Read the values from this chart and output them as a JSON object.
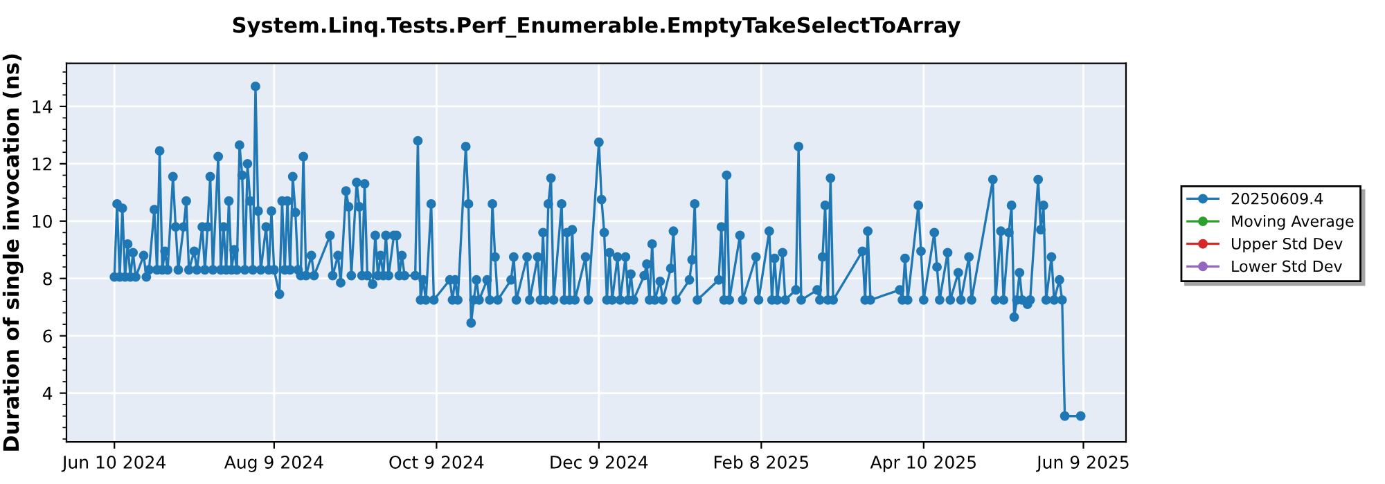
{
  "chart_data": {
    "type": "line",
    "title": "System.Linq.Tests.Perf_Enumerable.EmptyTakeSelectToArray",
    "ylabel": "Duration of single invocation (ns)",
    "x": [
      "2024-06-10",
      "2024-06-11",
      "2024-06-12",
      "2024-06-13",
      "2024-06-14",
      "2024-06-15",
      "2024-06-16",
      "2024-06-17",
      "2024-06-18",
      "2024-06-21",
      "2024-06-22",
      "2024-06-23",
      "2024-06-25",
      "2024-06-26",
      "2024-06-27",
      "2024-06-28",
      "2024-06-29",
      "2024-06-30",
      "2024-07-02",
      "2024-07-03",
      "2024-07-04",
      "2024-07-06",
      "2024-07-07",
      "2024-07-08",
      "2024-07-10",
      "2024-07-11",
      "2024-07-13",
      "2024-07-14",
      "2024-07-15",
      "2024-07-16",
      "2024-07-17",
      "2024-07-19",
      "2024-07-20",
      "2024-07-21",
      "2024-07-22",
      "2024-07-23",
      "2024-07-24",
      "2024-07-25",
      "2024-07-26",
      "2024-07-27",
      "2024-07-28",
      "2024-07-29",
      "2024-07-30",
      "2024-07-31",
      "2024-08-01",
      "2024-08-02",
      "2024-08-03",
      "2024-08-04",
      "2024-08-06",
      "2024-08-07",
      "2024-08-08",
      "2024-08-09",
      "2024-08-11",
      "2024-08-12",
      "2024-08-13",
      "2024-08-14",
      "2024-08-15",
      "2024-08-16",
      "2024-08-17",
      "2024-08-18",
      "2024-08-19",
      "2024-08-20",
      "2024-08-21",
      "2024-08-23",
      "2024-08-24",
      "2024-08-30",
      "2024-08-31",
      "2024-09-02",
      "2024-09-03",
      "2024-09-05",
      "2024-09-06",
      "2024-09-07",
      "2024-09-09",
      "2024-09-10",
      "2024-09-11",
      "2024-09-12",
      "2024-09-13",
      "2024-09-15",
      "2024-09-16",
      "2024-09-17",
      "2024-09-18",
      "2024-09-19",
      "2024-09-20",
      "2024-09-21",
      "2024-09-23",
      "2024-09-24",
      "2024-09-25",
      "2024-09-26",
      "2024-09-27",
      "2024-10-01",
      "2024-10-02",
      "2024-10-03",
      "2024-10-04",
      "2024-10-05",
      "2024-10-07",
      "2024-10-08",
      "2024-10-14",
      "2024-10-15",
      "2024-10-16",
      "2024-10-17",
      "2024-10-20",
      "2024-10-21",
      "2024-10-22",
      "2024-10-23",
      "2024-10-24",
      "2024-10-25",
      "2024-10-28",
      "2024-10-29",
      "2024-10-30",
      "2024-10-31",
      "2024-11-01",
      "2024-11-06",
      "2024-11-07",
      "2024-11-08",
      "2024-11-12",
      "2024-11-13",
      "2024-11-16",
      "2024-11-17",
      "2024-11-18",
      "2024-11-19",
      "2024-11-20",
      "2024-11-21",
      "2024-11-22",
      "2024-11-25",
      "2024-11-26",
      "2024-11-27",
      "2024-11-28",
      "2024-11-29",
      "2024-11-30",
      "2024-12-04",
      "2024-12-05",
      "2024-12-09",
      "2024-12-10",
      "2024-12-11",
      "2024-12-12",
      "2024-12-13",
      "2024-12-14",
      "2024-12-16",
      "2024-12-17",
      "2024-12-19",
      "2024-12-20",
      "2024-12-21",
      "2024-12-22",
      "2024-12-26",
      "2024-12-27",
      "2024-12-28",
      "2024-12-29",
      "2024-12-30",
      "2025-01-01",
      "2025-01-02",
      "2025-01-05",
      "2025-01-06",
      "2025-01-07",
      "2025-01-12",
      "2025-01-13",
      "2025-01-14",
      "2025-01-15",
      "2025-01-23",
      "2025-01-24",
      "2025-01-25",
      "2025-01-26",
      "2025-01-27",
      "2025-01-31",
      "2025-02-01",
      "2025-02-06",
      "2025-02-07",
      "2025-02-11",
      "2025-02-12",
      "2025-02-13",
      "2025-02-14",
      "2025-02-16",
      "2025-02-17",
      "2025-02-21",
      "2025-02-22",
      "2025-02-23",
      "2025-03-01",
      "2025-03-02",
      "2025-03-03",
      "2025-03-04",
      "2025-03-05",
      "2025-03-06",
      "2025-03-07",
      "2025-03-18",
      "2025-03-19",
      "2025-03-20",
      "2025-03-21",
      "2025-04-01",
      "2025-04-02",
      "2025-04-03",
      "2025-04-04",
      "2025-04-08",
      "2025-04-09",
      "2025-04-10",
      "2025-04-14",
      "2025-04-15",
      "2025-04-16",
      "2025-04-19",
      "2025-04-20",
      "2025-04-23",
      "2025-04-24",
      "2025-04-27",
      "2025-04-28",
      "2025-05-06",
      "2025-05-07",
      "2025-05-09",
      "2025-05-10",
      "2025-05-12",
      "2025-05-13",
      "2025-05-14",
      "2025-05-15",
      "2025-05-16",
      "2025-05-17",
      "2025-05-19",
      "2025-05-20",
      "2025-05-23",
      "2025-05-24",
      "2025-05-25",
      "2025-05-26",
      "2025-05-28",
      "2025-05-29",
      "2025-05-31",
      "2025-06-01",
      "2025-06-02",
      "2025-06-08"
    ],
    "series": [
      {
        "name": "20250609.4",
        "color": "#1f77b4",
        "marker": "circle",
        "values": [
          8.05,
          10.6,
          8.05,
          10.45,
          8.05,
          9.2,
          8.05,
          8.9,
          8.05,
          8.8,
          8.05,
          8.3,
          10.4,
          8.3,
          12.45,
          8.3,
          8.95,
          8.3,
          11.55,
          9.8,
          8.3,
          9.8,
          10.7,
          8.3,
          8.95,
          8.3,
          9.8,
          8.3,
          9.8,
          11.55,
          8.3,
          12.25,
          8.3,
          9.8,
          8.3,
          10.7,
          8.3,
          9.0,
          8.3,
          12.65,
          11.6,
          8.3,
          12.0,
          10.7,
          8.3,
          14.7,
          10.35,
          8.3,
          9.8,
          8.3,
          10.35,
          8.3,
          7.45,
          10.7,
          8.3,
          10.7,
          8.3,
          11.55,
          10.3,
          8.3,
          8.1,
          12.25,
          8.1,
          8.8,
          8.1,
          9.5,
          8.1,
          8.8,
          7.85,
          11.05,
          10.5,
          8.1,
          11.35,
          10.5,
          8.1,
          11.3,
          8.1,
          7.8,
          9.5,
          8.1,
          8.8,
          8.1,
          9.5,
          8.1,
          9.5,
          9.5,
          8.1,
          8.8,
          8.1,
          8.1,
          12.8,
          7.25,
          7.95,
          7.25,
          10.6,
          7.25,
          7.95,
          7.25,
          7.95,
          7.25,
          12.6,
          10.6,
          6.45,
          7.25,
          7.95,
          7.25,
          7.95,
          7.25,
          10.6,
          8.75,
          7.25,
          7.95,
          8.75,
          7.25,
          8.75,
          7.25,
          8.75,
          7.25,
          9.6,
          7.25,
          10.6,
          11.5,
          7.25,
          10.6,
          7.25,
          9.6,
          7.25,
          9.7,
          7.25,
          8.75,
          7.25,
          12.75,
          10.75,
          9.6,
          7.25,
          8.9,
          7.25,
          8.75,
          7.25,
          8.75,
          7.25,
          8.15,
          7.25,
          8.1,
          8.5,
          7.25,
          9.2,
          7.25,
          7.9,
          7.25,
          8.35,
          9.65,
          7.25,
          7.95,
          8.65,
          10.6,
          7.25,
          7.95,
          9.8,
          7.25,
          11.6,
          7.25,
          9.5,
          7.25,
          8.75,
          7.25,
          9.65,
          7.25,
          8.7,
          7.25,
          8.9,
          7.25,
          7.6,
          12.6,
          7.25,
          7.6,
          7.25,
          8.75,
          10.55,
          7.25,
          11.5,
          7.25,
          8.95,
          7.25,
          9.65,
          7.25,
          7.6,
          7.25,
          8.7,
          7.25,
          10.55,
          8.95,
          7.25,
          9.6,
          8.4,
          7.25,
          8.9,
          7.25,
          8.2,
          7.25,
          8.75,
          7.25,
          11.45,
          7.25,
          9.65,
          7.25,
          9.6,
          10.55,
          6.65,
          7.25,
          8.2,
          7.25,
          7.1,
          7.25,
          11.45,
          9.7,
          10.55,
          7.25,
          8.75,
          7.25,
          7.95,
          7.25,
          3.2,
          3.2
        ]
      },
      {
        "name": "Moving Average",
        "color": "#2ca02c",
        "marker": "circle",
        "values": [
          null,
          null,
          null,
          null,
          null,
          null,
          null,
          null,
          null,
          null,
          null,
          null,
          null,
          null,
          null,
          null,
          null,
          null,
          null,
          null,
          null,
          null,
          null,
          null,
          null,
          null,
          null,
          null,
          null,
          null,
          null,
          null,
          null,
          null,
          null,
          null,
          null,
          null,
          null,
          null,
          null,
          null,
          null,
          null,
          null,
          null,
          null,
          null,
          null,
          null,
          null,
          null,
          null,
          null,
          null,
          null,
          null,
          null,
          null,
          null,
          null,
          null,
          null,
          null,
          null,
          null,
          null,
          null,
          null,
          null,
          null,
          null,
          null,
          null,
          null,
          null,
          null,
          null,
          null,
          null,
          null,
          null,
          null,
          null,
          null,
          null,
          null,
          null,
          null,
          null,
          null,
          null,
          null,
          null,
          null,
          null,
          null,
          null,
          null,
          null,
          null,
          null,
          null,
          null,
          null,
          null,
          null,
          null,
          null,
          null,
          null,
          null,
          null,
          null,
          null,
          null,
          null,
          null,
          null,
          null,
          null,
          null,
          null,
          null,
          null,
          null,
          null,
          null,
          null,
          null,
          null,
          null,
          null,
          null,
          null,
          null,
          null,
          null,
          null,
          null,
          null,
          null,
          null,
          null,
          null,
          null,
          null,
          null,
          null,
          null,
          null,
          null,
          null,
          null,
          null,
          null,
          null,
          null,
          null,
          null,
          null,
          null,
          null,
          null,
          null,
          null,
          null,
          null,
          null,
          null,
          null,
          null,
          null,
          null,
          null,
          null,
          null,
          null,
          null,
          null,
          null,
          null,
          null,
          null,
          null,
          null,
          null,
          null,
          null,
          null,
          null,
          null,
          null,
          null,
          null,
          null,
          null,
          null,
          null,
          null,
          null,
          null,
          null,
          null,
          null,
          null,
          null,
          null,
          null,
          null,
          null,
          null,
          null,
          null,
          null,
          null,
          null,
          null,
          null,
          null,
          null,
          null,
          null,
          null
        ]
      },
      {
        "name": "Upper Std Dev",
        "color": "#d62728",
        "marker": "circle",
        "values": [
          null,
          null,
          null,
          null,
          null,
          null,
          null,
          null,
          null,
          null,
          null,
          null,
          null,
          null,
          null,
          null,
          null,
          null,
          null,
          null,
          null,
          null,
          null,
          null,
          null,
          null,
          null,
          null,
          null,
          null,
          null,
          null,
          null,
          null,
          null,
          null,
          null,
          null,
          null,
          null,
          null,
          null,
          null,
          null,
          null,
          null,
          null,
          null,
          null,
          null,
          null,
          null,
          null,
          null,
          null,
          null,
          null,
          null,
          null,
          null,
          null,
          null,
          null,
          null,
          null,
          null,
          null,
          null,
          null,
          null,
          null,
          null,
          null,
          null,
          null,
          null,
          null,
          null,
          null,
          null,
          null,
          null,
          null,
          null,
          null,
          null,
          null,
          null,
          null,
          null,
          null,
          null,
          null,
          null,
          null,
          null,
          null,
          null,
          null,
          null,
          null,
          null,
          null,
          null,
          null,
          null,
          null,
          null,
          null,
          null,
          null,
          null,
          null,
          null,
          null,
          null,
          null,
          null,
          null,
          null,
          null,
          null,
          null,
          null,
          null,
          null,
          null,
          null,
          null,
          null,
          null,
          null,
          null,
          null,
          null,
          null,
          null,
          null,
          null,
          null,
          null,
          null,
          null,
          null,
          null,
          null,
          null,
          null,
          null,
          null,
          null,
          null,
          null,
          null,
          null,
          null,
          null,
          null,
          null,
          null,
          null,
          null,
          null,
          null,
          null,
          null,
          null,
          null,
          null,
          null,
          null,
          null,
          null,
          null,
          null,
          null,
          null,
          null,
          null,
          null,
          null,
          null,
          null,
          null,
          null,
          null,
          null,
          null,
          null,
          null,
          null,
          null,
          null,
          null,
          null,
          null,
          null,
          null,
          null,
          null,
          null,
          null,
          null,
          null,
          null,
          null,
          null,
          null,
          null,
          null,
          null,
          null,
          null,
          null,
          null,
          null,
          null,
          null,
          null,
          null,
          null,
          null,
          null,
          null
        ]
      },
      {
        "name": "Lower Std Dev",
        "color": "#9467bd",
        "marker": "circle",
        "values": [
          null,
          null,
          null,
          null,
          null,
          null,
          null,
          null,
          null,
          null,
          null,
          null,
          null,
          null,
          null,
          null,
          null,
          null,
          null,
          null,
          null,
          null,
          null,
          null,
          null,
          null,
          null,
          null,
          null,
          null,
          null,
          null,
          null,
          null,
          null,
          null,
          null,
          null,
          null,
          null,
          null,
          null,
          null,
          null,
          null,
          null,
          null,
          null,
          null,
          null,
          null,
          null,
          null,
          null,
          null,
          null,
          null,
          null,
          null,
          null,
          null,
          null,
          null,
          null,
          null,
          null,
          null,
          null,
          null,
          null,
          null,
          null,
          null,
          null,
          null,
          null,
          null,
          null,
          null,
          null,
          null,
          null,
          null,
          null,
          null,
          null,
          null,
          null,
          null,
          null,
          null,
          null,
          null,
          null,
          null,
          null,
          null,
          null,
          null,
          null,
          null,
          null,
          null,
          null,
          null,
          null,
          null,
          null,
          null,
          null,
          null,
          null,
          null,
          null,
          null,
          null,
          null,
          null,
          null,
          null,
          null,
          null,
          null,
          null,
          null,
          null,
          null,
          null,
          null,
          null,
          null,
          null,
          null,
          null,
          null,
          null,
          null,
          null,
          null,
          null,
          null,
          null,
          null,
          null,
          null,
          null,
          null,
          null,
          null,
          null,
          null,
          null,
          null,
          null,
          null,
          null,
          null,
          null,
          null,
          null,
          null,
          null,
          null,
          null,
          null,
          null,
          null,
          null,
          null,
          null,
          null,
          null,
          null,
          null,
          null,
          null,
          null,
          null,
          null,
          null,
          null,
          null,
          null,
          null,
          null,
          null,
          null,
          null,
          null,
          null,
          null,
          null,
          null,
          null,
          null,
          null,
          null,
          null,
          null,
          null,
          null,
          null,
          null,
          null,
          null,
          null,
          null,
          null,
          null,
          null,
          null,
          null,
          null,
          null,
          null,
          null,
          null,
          null,
          null,
          null,
          null,
          null,
          null,
          null
        ]
      }
    ],
    "xlim": [
      "2024-05-23",
      "2025-06-25"
    ],
    "xticks": [
      {
        "value": "2024-06-10",
        "label": "Jun 10 2024"
      },
      {
        "value": "2024-08-09",
        "label": "Aug 9 2024"
      },
      {
        "value": "2024-10-09",
        "label": "Oct 9 2024"
      },
      {
        "value": "2024-12-09",
        "label": "Dec 9 2024"
      },
      {
        "value": "2025-02-08",
        "label": "Feb 8 2025"
      },
      {
        "value": "2025-04-10",
        "label": "Apr 10 2025"
      },
      {
        "value": "2025-06-09",
        "label": "Jun 9 2025"
      }
    ],
    "ylim": [
      2.3,
      15.5
    ],
    "yticks": [
      4,
      6,
      8,
      10,
      12,
      14
    ],
    "grid": true,
    "legend": "right",
    "line_style": "solid"
  }
}
